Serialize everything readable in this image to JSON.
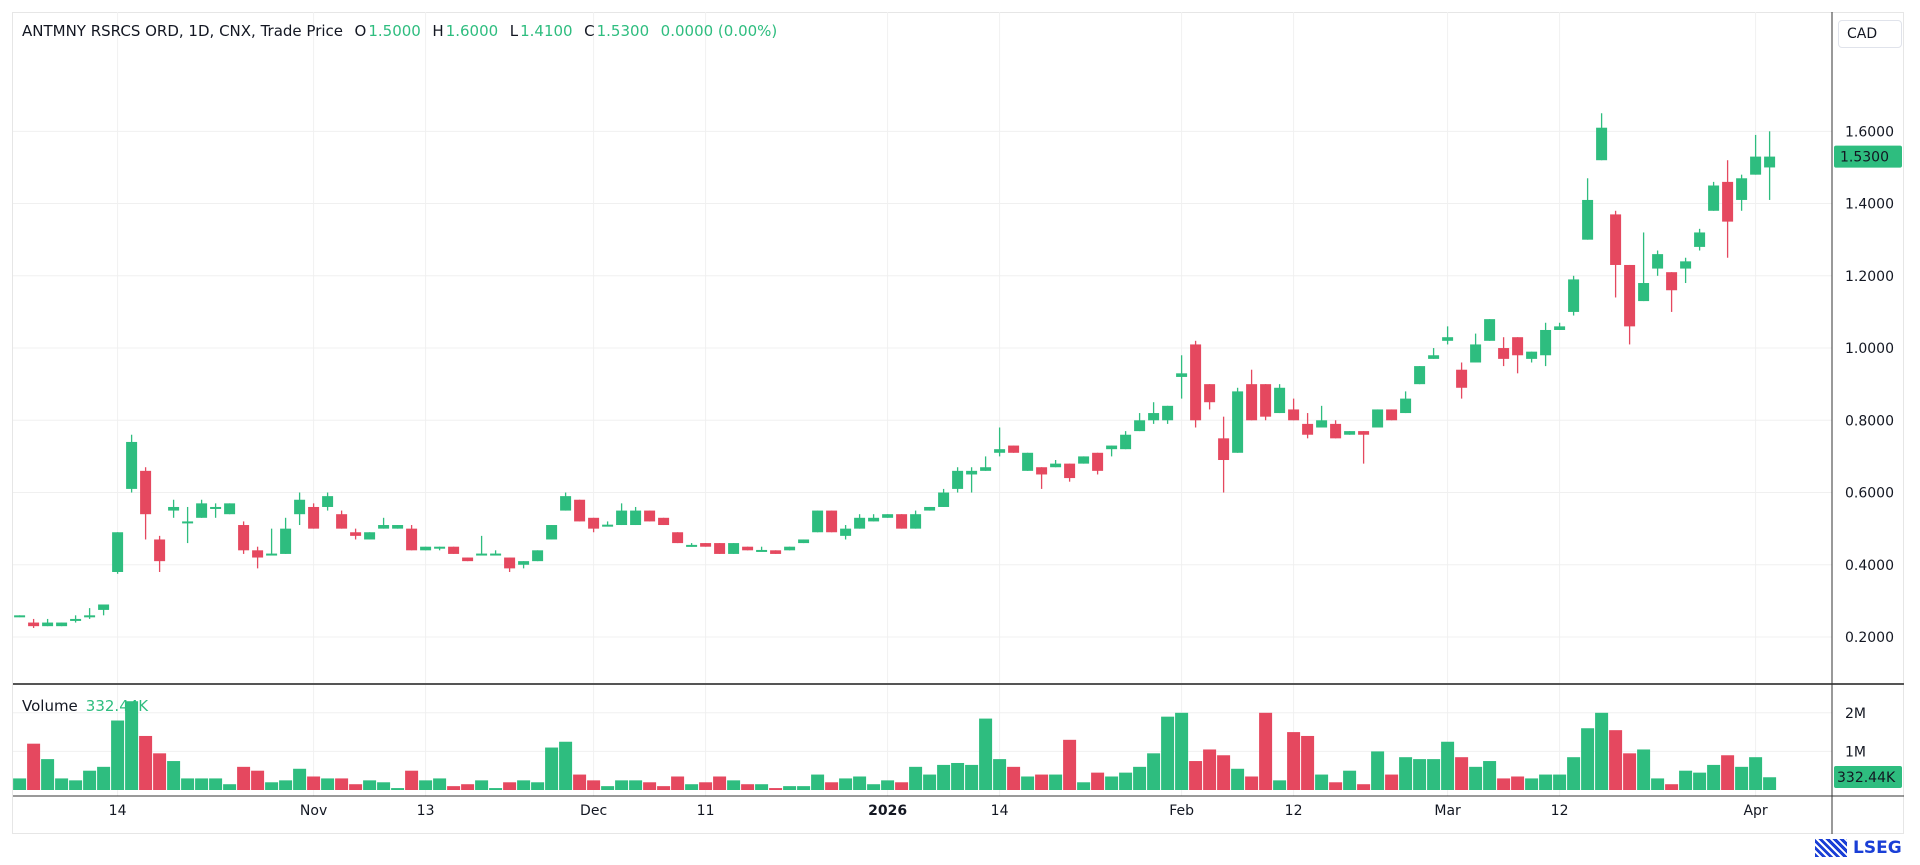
{
  "header": {
    "symbol": "ANTMNY RSRCS ORD, 1D, CNX, Trade Price",
    "o_label": "O",
    "o": "1.5000",
    "h_label": "H",
    "h": "1.6000",
    "l_label": "L",
    "l": "1.4100",
    "c_label": "C",
    "c": "1.5300",
    "change": "0.0000 (0.00%)"
  },
  "currency": "CAD",
  "volume_legend": {
    "label": "Volume",
    "value": "332.44K"
  },
  "logo": "LSEG",
  "colors": {
    "up": "#2ebd7f",
    "down": "#e5485f",
    "grid": "#f0f0f0"
  },
  "chart_data": {
    "type": "candlestick",
    "title": "ANTMNY RSRCS ORD, 1D, CNX, Trade Price",
    "ylim": [
      0.1,
      1.8
    ],
    "y_ticks": [
      "1.6000",
      "1.4000",
      "1.2000",
      "1.0000",
      "0.8000",
      "0.6000",
      "0.4000",
      "0.2000"
    ],
    "y_tick_values": [
      1.6,
      1.4,
      1.2,
      1.0,
      0.8,
      0.6,
      0.4,
      0.2
    ],
    "last_price_label": "1.5300",
    "x_labels": [
      {
        "i": 7,
        "text": "14"
      },
      {
        "i": 21,
        "text": "Nov"
      },
      {
        "i": 29,
        "text": "13"
      },
      {
        "i": 41,
        "text": "Dec"
      },
      {
        "i": 49,
        "text": "11"
      },
      {
        "i": 62,
        "text": "2026",
        "bold": true
      },
      {
        "i": 70,
        "text": "14"
      },
      {
        "i": 83,
        "text": "Feb"
      },
      {
        "i": 91,
        "text": "12"
      },
      {
        "i": 102,
        "text": "Mar"
      },
      {
        "i": 110,
        "text": "12"
      },
      {
        "i": 124,
        "text": "Apr"
      }
    ],
    "volume_ticks": [
      "2M",
      "1M"
    ],
    "volume_tick_values": [
      2,
      1
    ],
    "volume_last_label": "332.44K",
    "ohlc": [
      [
        0.26,
        0.26,
        0.255,
        0.26
      ],
      [
        0.24,
        0.25,
        0.225,
        0.23
      ],
      [
        0.23,
        0.25,
        0.23,
        0.24
      ],
      [
        0.23,
        0.24,
        0.23,
        0.24
      ],
      [
        0.245,
        0.26,
        0.24,
        0.25
      ],
      [
        0.255,
        0.28,
        0.25,
        0.26
      ],
      [
        0.275,
        0.29,
        0.26,
        0.29
      ],
      [
        0.38,
        0.49,
        0.375,
        0.49
      ],
      [
        0.61,
        0.76,
        0.6,
        0.74
      ],
      [
        0.66,
        0.67,
        0.47,
        0.54
      ],
      [
        0.47,
        0.48,
        0.38,
        0.41
      ],
      [
        0.55,
        0.58,
        0.53,
        0.56
      ],
      [
        0.52,
        0.56,
        0.46,
        0.52
      ],
      [
        0.53,
        0.58,
        0.53,
        0.57
      ],
      [
        0.56,
        0.57,
        0.53,
        0.56
      ],
      [
        0.54,
        0.57,
        0.54,
        0.57
      ],
      [
        0.51,
        0.52,
        0.43,
        0.44
      ],
      [
        0.44,
        0.45,
        0.39,
        0.42
      ],
      [
        0.43,
        0.5,
        0.43,
        0.431
      ],
      [
        0.43,
        0.53,
        0.43,
        0.5
      ],
      [
        0.54,
        0.6,
        0.51,
        0.58
      ],
      [
        0.56,
        0.57,
        0.5,
        0.5
      ],
      [
        0.56,
        0.6,
        0.55,
        0.59
      ],
      [
        0.54,
        0.55,
        0.5,
        0.5
      ],
      [
        0.49,
        0.5,
        0.47,
        0.48
      ],
      [
        0.47,
        0.49,
        0.47,
        0.49
      ],
      [
        0.5,
        0.53,
        0.5,
        0.51
      ],
      [
        0.5,
        0.51,
        0.5,
        0.51
      ],
      [
        0.5,
        0.51,
        0.44,
        0.44
      ],
      [
        0.44,
        0.45,
        0.44,
        0.45
      ],
      [
        0.445,
        0.45,
        0.44,
        0.45
      ],
      [
        0.45,
        0.45,
        0.43,
        0.43
      ],
      [
        0.42,
        0.42,
        0.41,
        0.41
      ],
      [
        0.43,
        0.48,
        0.43,
        0.431
      ],
      [
        0.43,
        0.44,
        0.43,
        0.431
      ],
      [
        0.42,
        0.42,
        0.38,
        0.39
      ],
      [
        0.4,
        0.41,
        0.39,
        0.41
      ],
      [
        0.41,
        0.44,
        0.41,
        0.44
      ],
      [
        0.47,
        0.51,
        0.47,
        0.51
      ],
      [
        0.55,
        0.6,
        0.55,
        0.59
      ],
      [
        0.58,
        0.58,
        0.52,
        0.52
      ],
      [
        0.53,
        0.53,
        0.49,
        0.5
      ],
      [
        0.51,
        0.52,
        0.51,
        0.511
      ],
      [
        0.51,
        0.57,
        0.51,
        0.55
      ],
      [
        0.51,
        0.56,
        0.51,
        0.55
      ],
      [
        0.55,
        0.55,
        0.52,
        0.52
      ],
      [
        0.53,
        0.53,
        0.51,
        0.51
      ],
      [
        0.49,
        0.49,
        0.46,
        0.46
      ],
      [
        0.45,
        0.46,
        0.45,
        0.455
      ],
      [
        0.46,
        0.46,
        0.45,
        0.45
      ],
      [
        0.46,
        0.46,
        0.43,
        0.43
      ],
      [
        0.43,
        0.46,
        0.43,
        0.46
      ],
      [
        0.45,
        0.45,
        0.44,
        0.44
      ],
      [
        0.44,
        0.45,
        0.44,
        0.441
      ],
      [
        0.44,
        0.44,
        0.43,
        0.43
      ],
      [
        0.44,
        0.45,
        0.44,
        0.45
      ],
      [
        0.46,
        0.47,
        0.46,
        0.47
      ],
      [
        0.49,
        0.55,
        0.49,
        0.55
      ],
      [
        0.55,
        0.55,
        0.49,
        0.49
      ],
      [
        0.48,
        0.51,
        0.47,
        0.5
      ],
      [
        0.5,
        0.54,
        0.5,
        0.53
      ],
      [
        0.52,
        0.54,
        0.52,
        0.53
      ],
      [
        0.53,
        0.54,
        0.53,
        0.54
      ],
      [
        0.54,
        0.54,
        0.5,
        0.5
      ],
      [
        0.5,
        0.55,
        0.5,
        0.54
      ],
      [
        0.55,
        0.56,
        0.55,
        0.56
      ],
      [
        0.56,
        0.61,
        0.56,
        0.6
      ],
      [
        0.61,
        0.67,
        0.6,
        0.66
      ],
      [
        0.65,
        0.67,
        0.6,
        0.66
      ],
      [
        0.66,
        0.7,
        0.66,
        0.67
      ],
      [
        0.71,
        0.78,
        0.7,
        0.72
      ],
      [
        0.73,
        0.73,
        0.71,
        0.71
      ],
      [
        0.66,
        0.71,
        0.66,
        0.71
      ],
      [
        0.67,
        0.67,
        0.61,
        0.65
      ],
      [
        0.67,
        0.69,
        0.67,
        0.68
      ],
      [
        0.68,
        0.68,
        0.63,
        0.64
      ],
      [
        0.68,
        0.7,
        0.68,
        0.7
      ],
      [
        0.71,
        0.71,
        0.65,
        0.66
      ],
      [
        0.72,
        0.73,
        0.7,
        0.73
      ],
      [
        0.72,
        0.77,
        0.72,
        0.76
      ],
      [
        0.77,
        0.82,
        0.77,
        0.8
      ],
      [
        0.8,
        0.85,
        0.79,
        0.82
      ],
      [
        0.8,
        0.84,
        0.79,
        0.84
      ],
      [
        0.92,
        0.98,
        0.86,
        0.93
      ],
      [
        1.01,
        1.02,
        0.78,
        0.8
      ],
      [
        0.9,
        0.9,
        0.83,
        0.85
      ],
      [
        0.75,
        0.81,
        0.6,
        0.69
      ],
      [
        0.71,
        0.89,
        0.71,
        0.88
      ],
      [
        0.9,
        0.94,
        0.8,
        0.8
      ],
      [
        0.9,
        0.9,
        0.8,
        0.81
      ],
      [
        0.82,
        0.9,
        0.82,
        0.89
      ],
      [
        0.83,
        0.86,
        0.8,
        0.8
      ],
      [
        0.79,
        0.82,
        0.75,
        0.76
      ],
      [
        0.78,
        0.84,
        0.78,
        0.8
      ],
      [
        0.79,
        0.8,
        0.75,
        0.75
      ],
      [
        0.76,
        0.77,
        0.76,
        0.77
      ],
      [
        0.77,
        0.77,
        0.68,
        0.76
      ],
      [
        0.78,
        0.83,
        0.78,
        0.83
      ],
      [
        0.83,
        0.83,
        0.8,
        0.8
      ],
      [
        0.82,
        0.88,
        0.82,
        0.86
      ],
      [
        0.9,
        0.95,
        0.9,
        0.95
      ],
      [
        0.97,
        1.0,
        0.97,
        0.98
      ],
      [
        1.02,
        1.06,
        1.01,
        1.03
      ],
      [
        0.94,
        0.96,
        0.86,
        0.89
      ],
      [
        0.96,
        1.04,
        0.96,
        1.01
      ],
      [
        1.02,
        1.08,
        1.02,
        1.08
      ],
      [
        1.0,
        1.03,
        0.95,
        0.97
      ],
      [
        1.03,
        1.03,
        0.93,
        0.98
      ],
      [
        0.97,
        0.99,
        0.96,
        0.99
      ],
      [
        0.98,
        1.07,
        0.95,
        1.05
      ],
      [
        1.05,
        1.07,
        1.05,
        1.06
      ],
      [
        1.1,
        1.2,
        1.09,
        1.19
      ],
      [
        1.3,
        1.47,
        1.3,
        1.41
      ],
      [
        1.52,
        1.65,
        1.52,
        1.61
      ],
      [
        1.37,
        1.38,
        1.14,
        1.23
      ],
      [
        1.23,
        1.23,
        1.01,
        1.06
      ],
      [
        1.13,
        1.32,
        1.13,
        1.18
      ],
      [
        1.22,
        1.27,
        1.2,
        1.26
      ],
      [
        1.21,
        1.21,
        1.1,
        1.16
      ],
      [
        1.22,
        1.25,
        1.18,
        1.24
      ],
      [
        1.28,
        1.33,
        1.27,
        1.32
      ],
      [
        1.38,
        1.46,
        1.38,
        1.45
      ],
      [
        1.46,
        1.52,
        1.25,
        1.35
      ],
      [
        1.41,
        1.48,
        1.38,
        1.47
      ],
      [
        1.48,
        1.59,
        1.48,
        1.53
      ],
      [
        1.5,
        1.6,
        1.41,
        1.53
      ]
    ],
    "volume_millions": [
      0.3,
      1.2,
      0.8,
      0.3,
      0.25,
      0.5,
      0.6,
      1.8,
      2.3,
      1.4,
      0.95,
      0.75,
      0.3,
      0.3,
      0.3,
      0.15,
      0.6,
      0.5,
      0.2,
      0.25,
      0.55,
      0.35,
      0.3,
      0.3,
      0.15,
      0.25,
      0.2,
      0.05,
      0.5,
      0.25,
      0.3,
      0.1,
      0.15,
      0.25,
      0.05,
      0.2,
      0.25,
      0.2,
      1.1,
      1.25,
      0.4,
      0.25,
      0.1,
      0.25,
      0.25,
      0.2,
      0.1,
      0.35,
      0.15,
      0.2,
      0.35,
      0.25,
      0.15,
      0.15,
      0.05,
      0.1,
      0.1,
      0.4,
      0.2,
      0.3,
      0.35,
      0.15,
      0.25,
      0.2,
      0.6,
      0.4,
      0.65,
      0.7,
      0.65,
      1.85,
      0.8,
      0.6,
      0.35,
      0.4,
      0.4,
      1.3,
      0.2,
      0.45,
      0.35,
      0.45,
      0.6,
      0.95,
      1.9,
      2.0,
      0.75,
      1.05,
      0.9,
      0.55,
      0.35,
      2.0,
      0.25,
      1.5,
      1.4,
      0.4,
      0.2,
      0.5,
      0.15,
      1.0,
      0.4,
      0.85,
      0.8,
      0.8,
      1.25,
      0.85,
      0.6,
      0.75,
      0.3,
      0.35,
      0.3,
      0.4,
      0.4,
      0.85,
      1.6,
      2.0,
      1.55,
      0.95,
      1.05,
      0.3,
      0.15,
      0.5,
      0.45,
      0.65,
      0.9,
      0.6,
      0.85,
      0.33
    ]
  }
}
